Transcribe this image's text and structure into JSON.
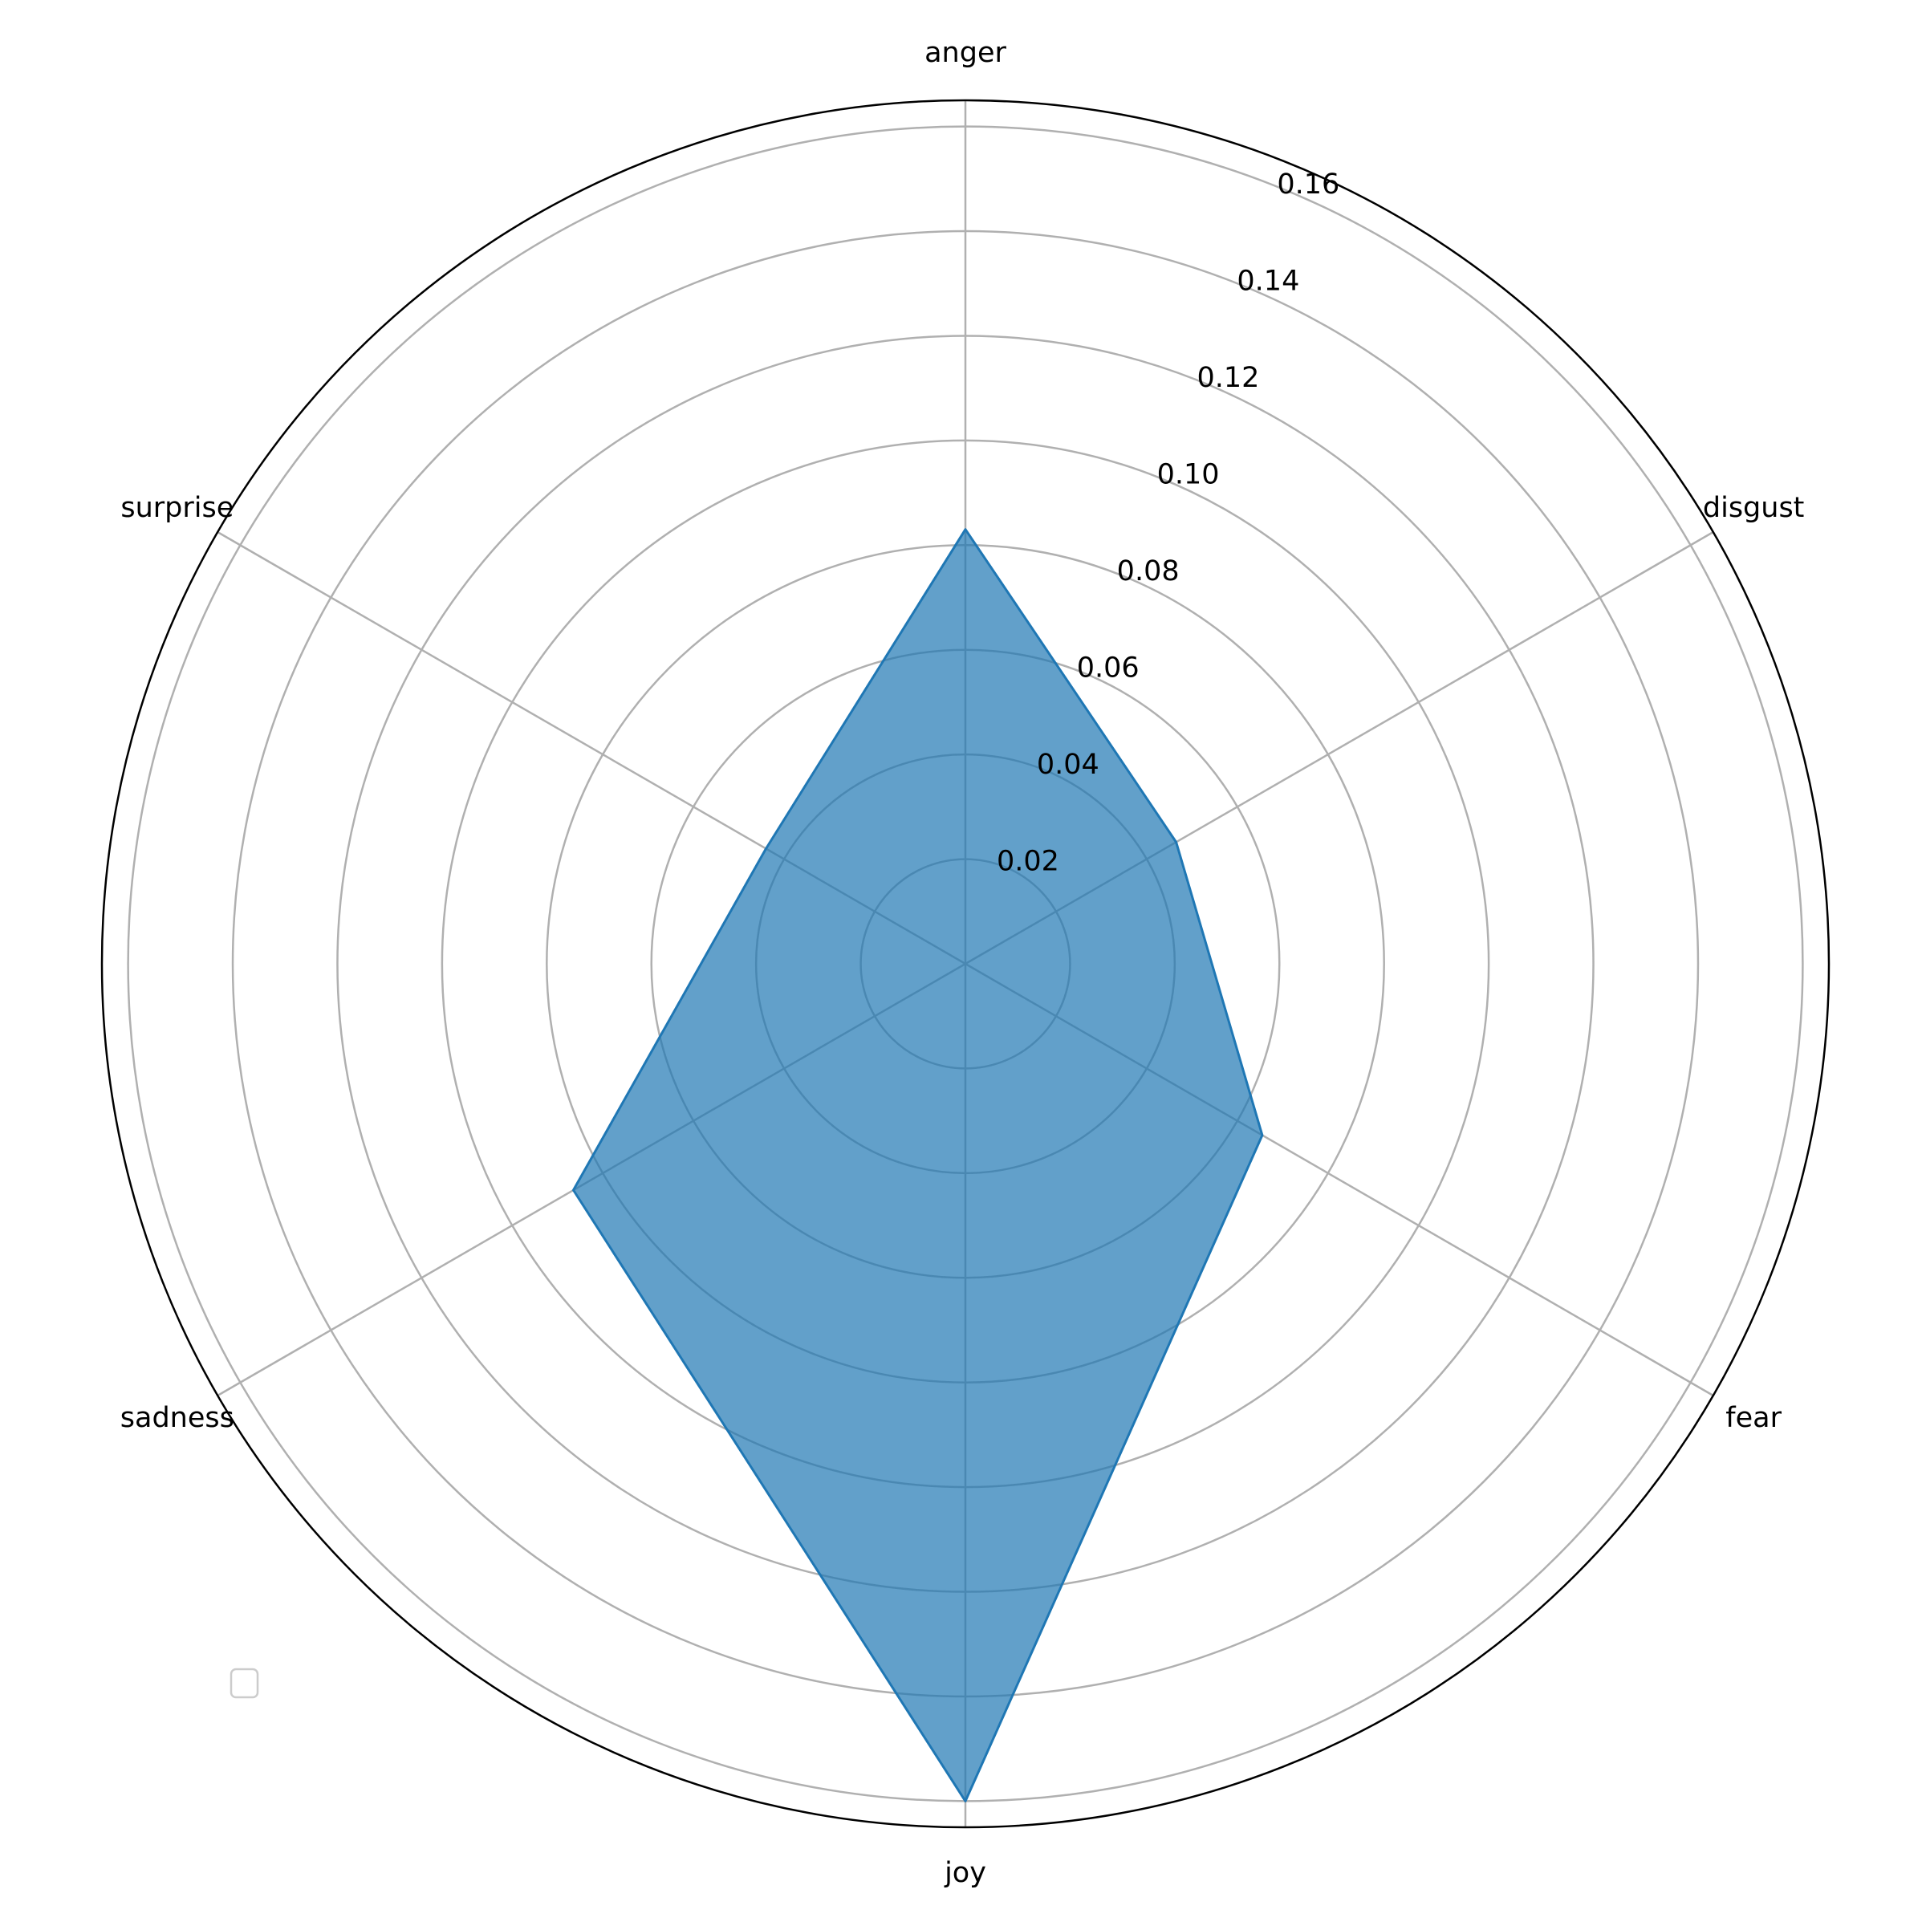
{
  "chart_data": {
    "type": "radar",
    "categories": [
      "anger",
      "disgust",
      "fear",
      "joy",
      "sadness",
      "surprise"
    ],
    "values": [
      0.083,
      0.0465,
      0.0655,
      0.16,
      0.0865,
      0.044
    ],
    "color": "#1f77b4",
    "ylim": [
      0,
      0.165
    ],
    "yticks": [
      0.02,
      0.04,
      0.06,
      0.08,
      {
        "value": 0.1,
        "label": "0.10"
      },
      0.12,
      0.14,
      0.16
    ],
    "grid": true
  }
}
